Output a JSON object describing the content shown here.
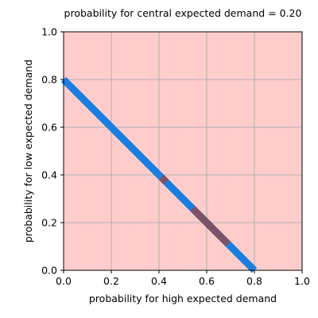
{
  "chart_data": {
    "type": "line",
    "title": "probability for central expected demand = 0.20",
    "xlabel": "probability for high expected demand",
    "ylabel": "probability for low expected demand",
    "xlim": [
      0,
      1
    ],
    "ylim": [
      0,
      1
    ],
    "xticks": [
      "0.0",
      "0.2",
      "0.4",
      "0.6",
      "0.8",
      "1.0"
    ],
    "yticks": [
      "0.0",
      "0.2",
      "0.4",
      "0.6",
      "0.8",
      "1.0"
    ],
    "grid": true,
    "background_color": "#ffcccc",
    "grid_color": "#b0b0b0",
    "series": [
      {
        "color": "#1a7fe0",
        "x": [
          0.0,
          0.8
        ],
        "y": [
          0.8,
          0.0
        ]
      },
      {
        "color": "#7a5466",
        "x": [
          0.41,
          0.43
        ],
        "y": [
          0.39,
          0.37
        ]
      },
      {
        "color": "#7a5466",
        "x": [
          0.54,
          0.69
        ],
        "y": [
          0.26,
          0.11
        ]
      }
    ]
  }
}
